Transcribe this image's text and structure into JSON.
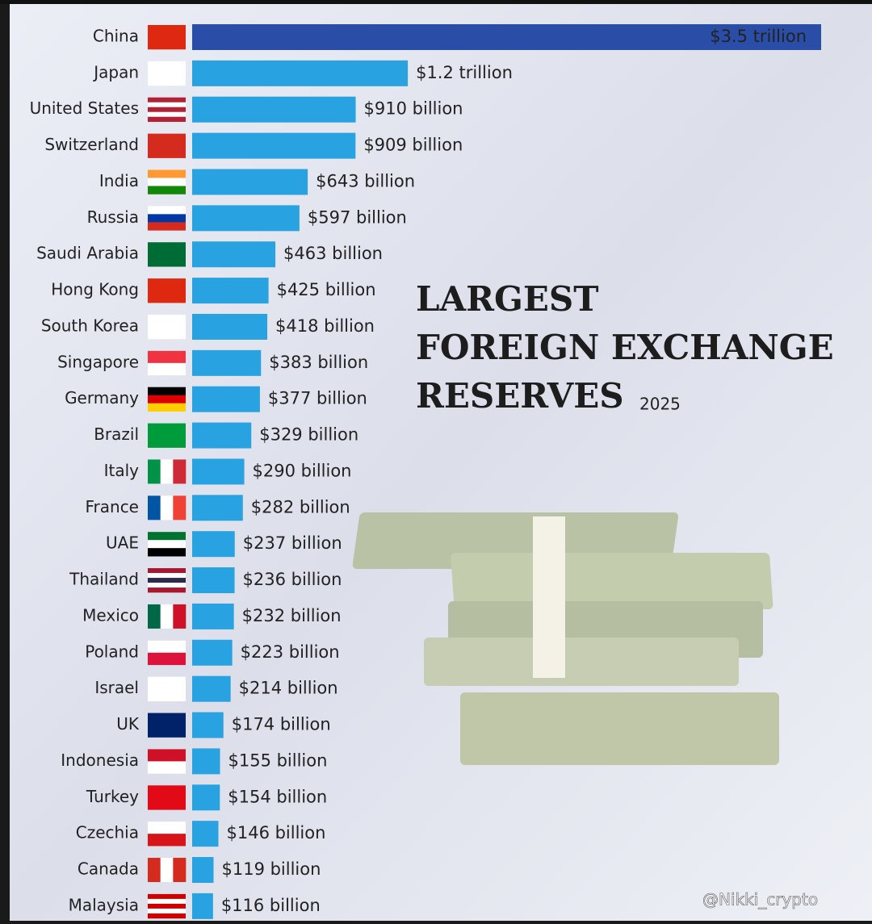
{
  "chart_data": {
    "type": "bar",
    "orientation": "horizontal",
    "title_lines": [
      "LARGEST",
      "FOREIGN EXCHANGE",
      "RESERVES"
    ],
    "year": "2025",
    "categories": [
      "China",
      "Japan",
      "United States",
      "Switzerland",
      "India",
      "Russia",
      "Saudi Arabia",
      "Hong Kong",
      "South Korea",
      "Singapore",
      "Germany",
      "Brazil",
      "Italy",
      "France",
      "UAE",
      "Thailand",
      "Mexico",
      "Poland",
      "Israel",
      "UK",
      "Indonesia",
      "Turkey",
      "Czechia",
      "Canada",
      "Malaysia"
    ],
    "values": [
      3500,
      1200,
      910,
      909,
      643,
      597,
      463,
      425,
      418,
      383,
      377,
      329,
      290,
      282,
      237,
      236,
      232,
      223,
      214,
      174,
      155,
      154,
      146,
      119,
      116
    ],
    "value_labels": [
      "$3.5 trillion",
      "$1.2 trillion",
      "$910 billion",
      "$909 billion",
      "$643 billion",
      "$597 billion",
      "$463 billion",
      "$425 billion",
      "$418 billion",
      "$383 billion",
      "$377 billion",
      "$329 billion",
      "$290 billion",
      "$282 billion",
      "$237 billion",
      "$236 billion",
      "$232 billion",
      "$223 billion",
      "$214 billion",
      "$174 billion",
      "$155 billion",
      "$154 billion",
      "$146 billion",
      "$119 billion",
      "$116 billion"
    ],
    "colors": [
      "#2a4ea8",
      "#28a2e0",
      "#28a2e0",
      "#28a2e0",
      "#28a2e0",
      "#28a2e0",
      "#28a2e0",
      "#28a2e0",
      "#28a2e0",
      "#28a2e0",
      "#28a2e0",
      "#28a2e0",
      "#28a2e0",
      "#28a2e0",
      "#28a2e0",
      "#28a2e0",
      "#28a2e0",
      "#28a2e0",
      "#28a2e0",
      "#28a2e0",
      "#28a2e0",
      "#28a2e0",
      "#28a2e0",
      "#28a2e0",
      "#28a2e0"
    ],
    "watermark": "@Nikki_crypto"
  }
}
